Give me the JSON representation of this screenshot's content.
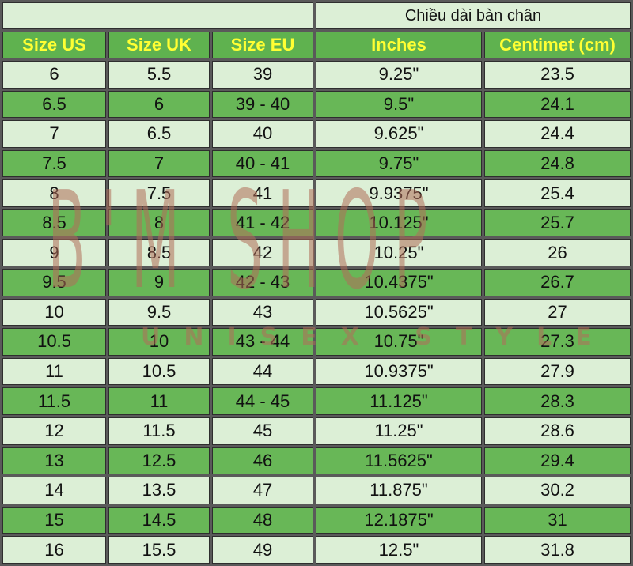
{
  "table": {
    "group_header": "Chiều dài bàn chân",
    "headers": [
      "Size US",
      "Size UK",
      "Size EU",
      "Inches",
      "Centimet (cm)"
    ],
    "rows": [
      [
        "6",
        "5.5",
        "39",
        "9.25\"",
        "23.5"
      ],
      [
        "6.5",
        "6",
        "39 - 40",
        "9.5\"",
        "24.1"
      ],
      [
        "7",
        "6.5",
        "40",
        "9.625\"",
        "24.4"
      ],
      [
        "7.5",
        "7",
        "40 - 41",
        "9.75\"",
        "24.8"
      ],
      [
        "8",
        "7.5",
        "41",
        "9.9375\"",
        "25.4"
      ],
      [
        "8.5",
        "8",
        "41 - 42",
        "10.125\"",
        "25.7"
      ],
      [
        "9",
        "8.5",
        "42",
        "10.25\"",
        "26"
      ],
      [
        "9.5",
        "9",
        "42 - 43",
        "10.4375\"",
        "26.7"
      ],
      [
        "10",
        "9.5",
        "43",
        "10.5625\"",
        "27"
      ],
      [
        "10.5",
        "10",
        "43 - 44",
        "10.75\"",
        "27.3"
      ],
      [
        "11",
        "10.5",
        "44",
        "10.9375\"",
        "27.9"
      ],
      [
        "11.5",
        "11",
        "44 - 45",
        "11.125\"",
        "28.3"
      ],
      [
        "12",
        "11.5",
        "45",
        "11.25\"",
        "28.6"
      ],
      [
        "13",
        "12.5",
        "46",
        "11.5625\"",
        "29.4"
      ],
      [
        "14",
        "13.5",
        "47",
        "11.875\"",
        "30.2"
      ],
      [
        "15",
        "14.5",
        "48",
        "12.1875\"",
        "31"
      ],
      [
        "16",
        "15.5",
        "49",
        "12.5\"",
        "31.8"
      ]
    ]
  },
  "watermark": {
    "brand": "B'M SHOP",
    "tagline": "UNISEX STYLE"
  },
  "colors": {
    "header_bg": "#5fb24f",
    "header_text": "#ffff33",
    "row_light": "#dcefd6",
    "row_dark": "#68b757"
  }
}
